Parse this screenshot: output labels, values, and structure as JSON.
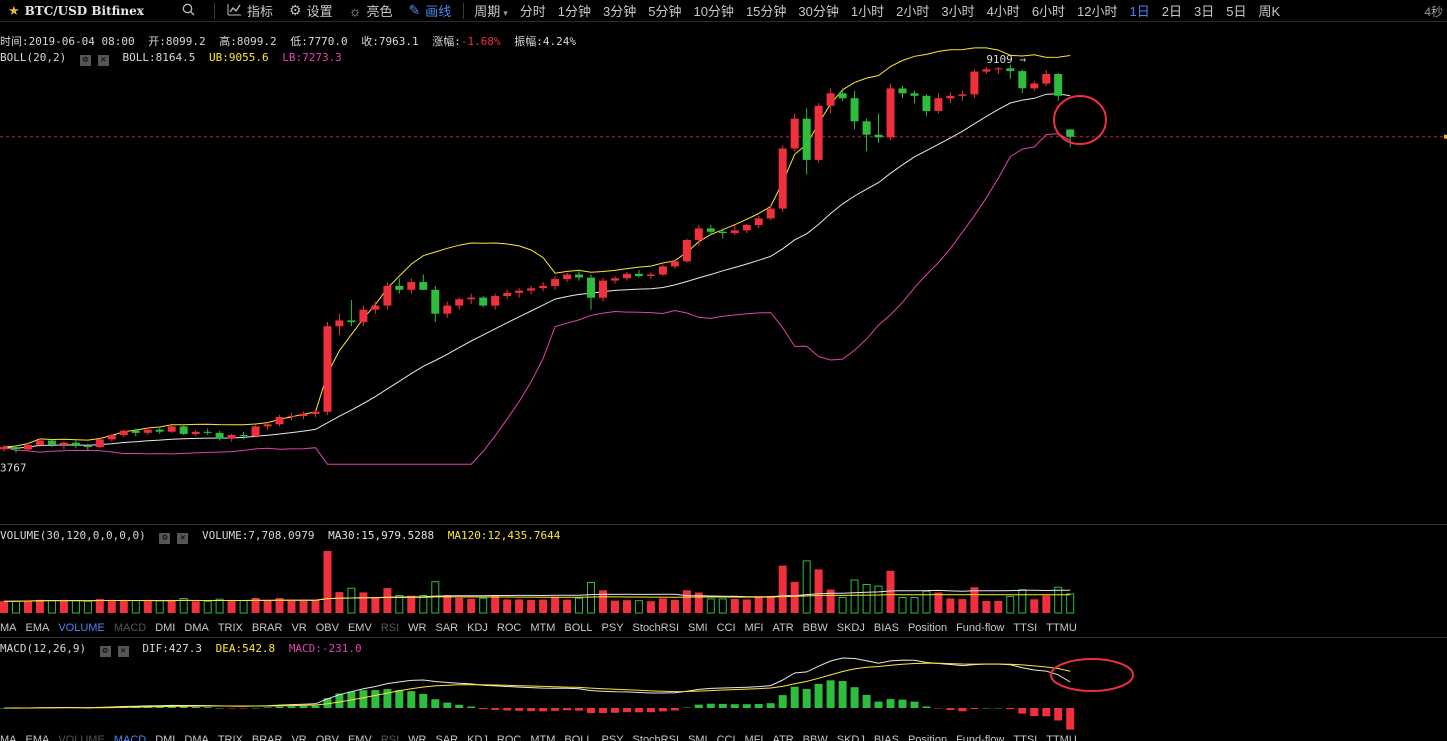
{
  "toolbar": {
    "symbol": "BTC/USD Bitfinex",
    "buttons": [
      {
        "label": "指标",
        "icon": "chart-icon"
      },
      {
        "label": "设置",
        "icon": "gear-icon"
      },
      {
        "label": "亮色",
        "icon": "sun-icon"
      },
      {
        "label": "画线",
        "icon": "pencil-icon"
      }
    ],
    "period_label": "周期",
    "periods": [
      "分时",
      "1分钟",
      "3分钟",
      "5分钟",
      "10分钟",
      "15分钟",
      "30分钟",
      "1小时",
      "2小时",
      "3小时",
      "4小时",
      "6小时",
      "12小时",
      "1日",
      "2日",
      "3日",
      "5日",
      "周K"
    ],
    "selected_period": "1日",
    "right_label": "4秒"
  },
  "ohlc": {
    "time_label": "时间:",
    "time": "2019-06-04 08:00",
    "open_label": "开:",
    "open": "8099.2",
    "high_label": "高:",
    "high": "8099.2",
    "low_label": "低:",
    "low": "7770.0",
    "close_label": "收:",
    "close": "7963.1",
    "change_label": "涨幅:",
    "change": "-1.68%",
    "amp_label": "振幅:",
    "amp": "4.24%"
  },
  "boll": {
    "name": "BOLL(20,2)",
    "mid": "BOLL:8164.5",
    "ub": "UB:9055.6",
    "lb": "LB:7273.3"
  },
  "price_annotations": {
    "high": "9109",
    "low": "3767"
  },
  "volume": {
    "name": "VOLUME(30,120,0,0,0,0)",
    "value": "VOLUME:7,708.0979",
    "ma30": "MA30:15,979.5288",
    "ma120": "MA120:12,435.7644"
  },
  "macd": {
    "name": "MACD(12,26,9)",
    "dif": "DIF:427.3",
    "dea": "DEA:542.8",
    "macd": "MACD:-231.0"
  },
  "indicator_tabs": [
    "MA",
    "EMA",
    "VOLUME",
    "MACD",
    "DMI",
    "DMA",
    "TRIX",
    "BRAR",
    "VR",
    "OBV",
    "EMV",
    "RSI",
    "WR",
    "SAR",
    "KDJ",
    "ROC",
    "MTM",
    "BOLL",
    "PSY",
    "StochRSI",
    "SMI",
    "CCI",
    "MFI",
    "ATR",
    "BBW",
    "SKDJ",
    "BIAS",
    "Position",
    "Fund-flow",
    "TTSI",
    "TTMU"
  ],
  "tabs_row1_active": "VOLUME",
  "tabs_row1_dim": [
    "MACD",
    "RSI"
  ],
  "tabs_row2_active": "MACD",
  "tabs_row2_dim": [
    "VOLUME",
    "RSI"
  ],
  "colors": {
    "up": "#f0303c",
    "down": "#2fbd3d",
    "boll_mid": "#e8e8e8",
    "boll_ub": "#ffe62e",
    "boll_lb": "#e043b0",
    "accent": "#4b87f0",
    "annotation": "#f0303c"
  },
  "chart_data": {
    "type": "candlestick",
    "candle_count": 90,
    "candles_visible_note": "",
    "series": [
      {
        "name": "K",
        "ohlc": [
          [
            3880,
            3920,
            3860,
            3900
          ],
          [
            3900,
            3910,
            3850,
            3880
          ],
          [
            3880,
            3940,
            3870,
            3920
          ],
          [
            3920,
            3980,
            3900,
            3960
          ],
          [
            3960,
            3970,
            3900,
            3920
          ],
          [
            3920,
            3950,
            3880,
            3940
          ],
          [
            3940,
            3960,
            3890,
            3910
          ],
          [
            3910,
            3930,
            3870,
            3900
          ],
          [
            3900,
            3980,
            3890,
            3970
          ],
          [
            3970,
            4020,
            3950,
            4010
          ],
          [
            4010,
            4060,
            3990,
            4050
          ],
          [
            4050,
            4070,
            4000,
            4030
          ],
          [
            4030,
            4080,
            4010,
            4060
          ],
          [
            4060,
            4090,
            4020,
            4040
          ],
          [
            4040,
            4100,
            4030,
            4090
          ],
          [
            4090,
            4110,
            4010,
            4020
          ],
          [
            4020,
            4060,
            4000,
            4040
          ],
          [
            4040,
            4070,
            4010,
            4030
          ],
          [
            4030,
            4050,
            3960,
            3980
          ],
          [
            3980,
            4020,
            3950,
            4010
          ],
          [
            4010,
            4040,
            3970,
            4000
          ],
          [
            4000,
            4100,
            3990,
            4090
          ],
          [
            4090,
            4130,
            4060,
            4110
          ],
          [
            4110,
            4200,
            4090,
            4180
          ],
          [
            4180,
            4220,
            4150,
            4190
          ],
          [
            4190,
            4230,
            4160,
            4210
          ],
          [
            4210,
            4260,
            4180,
            4230
          ],
          [
            4230,
            5200,
            4200,
            5150
          ],
          [
            5150,
            5300,
            5050,
            5220
          ],
          [
            5220,
            5470,
            5150,
            5200
          ],
          [
            5200,
            5400,
            5150,
            5350
          ],
          [
            5350,
            5450,
            5300,
            5400
          ],
          [
            5400,
            5700,
            5350,
            5650
          ],
          [
            5650,
            5750,
            5550,
            5600
          ],
          [
            5600,
            5750,
            5550,
            5700
          ],
          [
            5700,
            5800,
            5600,
            5600
          ],
          [
            5600,
            5650,
            5200,
            5300
          ],
          [
            5300,
            5450,
            5250,
            5400
          ],
          [
            5400,
            5500,
            5350,
            5480
          ],
          [
            5480,
            5550,
            5420,
            5500
          ],
          [
            5500,
            5520,
            5380,
            5400
          ],
          [
            5400,
            5550,
            5350,
            5520
          ],
          [
            5520,
            5600,
            5480,
            5560
          ],
          [
            5560,
            5620,
            5500,
            5590
          ],
          [
            5590,
            5650,
            5540,
            5620
          ],
          [
            5620,
            5700,
            5580,
            5650
          ],
          [
            5650,
            5780,
            5600,
            5740
          ],
          [
            5740,
            5820,
            5700,
            5800
          ],
          [
            5800,
            5870,
            5720,
            5760
          ],
          [
            5760,
            5800,
            5350,
            5500
          ],
          [
            5500,
            5760,
            5450,
            5720
          ],
          [
            5720,
            5780,
            5680,
            5750
          ],
          [
            5750,
            5830,
            5720,
            5810
          ],
          [
            5810,
            5860,
            5760,
            5780
          ],
          [
            5780,
            5830,
            5740,
            5800
          ],
          [
            5800,
            5930,
            5780,
            5910
          ],
          [
            5910,
            6000,
            5880,
            5980
          ],
          [
            5980,
            6300,
            5960,
            6280
          ],
          [
            6280,
            6500,
            6200,
            6450
          ],
          [
            6450,
            6500,
            6350,
            6400
          ],
          [
            6400,
            6450,
            6300,
            6380
          ],
          [
            6380,
            6500,
            6350,
            6420
          ],
          [
            6420,
            6520,
            6380,
            6500
          ],
          [
            6500,
            6640,
            6450,
            6600
          ],
          [
            6600,
            6800,
            6570,
            6750
          ],
          [
            6750,
            7800,
            6700,
            7750
          ],
          [
            7750,
            8400,
            7700,
            8300
          ],
          [
            8300,
            8500,
            7300,
            7550
          ],
          [
            7550,
            8600,
            7500,
            8550
          ],
          [
            8550,
            8900,
            8400,
            8800
          ],
          [
            8800,
            8900,
            8650,
            8700
          ],
          [
            8700,
            8850,
            8100,
            8250
          ],
          [
            8250,
            8300,
            7700,
            8000
          ],
          [
            8000,
            8400,
            7850,
            7950
          ],
          [
            7950,
            9000,
            7900,
            8900
          ],
          [
            8900,
            8950,
            8700,
            8800
          ],
          [
            8800,
            8850,
            8600,
            8750
          ],
          [
            8750,
            8780,
            8350,
            8450
          ],
          [
            8450,
            8800,
            8400,
            8700
          ],
          [
            8700,
            8820,
            8600,
            8750
          ],
          [
            8750,
            8850,
            8650,
            8780
          ],
          [
            8780,
            9300,
            8700,
            9250
          ],
          [
            9250,
            9350,
            9200,
            9300
          ],
          [
            9300,
            9350,
            9200,
            9320
          ],
          [
            9320,
            9400,
            9100,
            9260
          ],
          [
            9260,
            9300,
            8800,
            8900
          ],
          [
            8900,
            9050,
            8850,
            9000
          ],
          [
            9000,
            9280,
            8950,
            9200
          ],
          [
            9200,
            9220,
            8650,
            8750
          ],
          [
            8099.2,
            8099.2,
            7770.0,
            7963.1
          ]
        ]
      }
    ]
  }
}
